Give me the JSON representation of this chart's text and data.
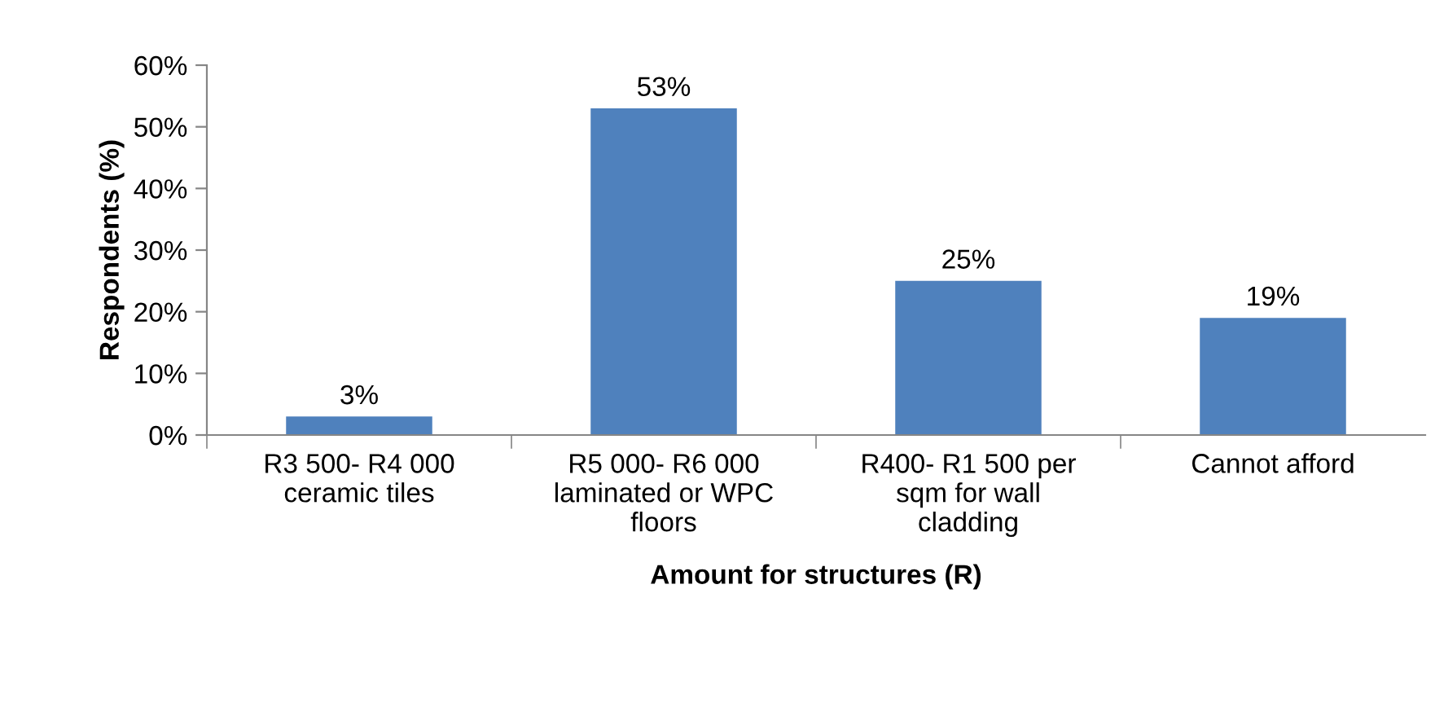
{
  "chart_data": {
    "type": "bar",
    "xlabel": "Amount for structures (R)",
    "ylabel": "Respondents (%)",
    "categories": [
      "R3 500- R4 000\nceramic tiles",
      "R5 000- R6 000\nlaminated or WPC\nfloors",
      "R400- R1 500 per\nsqm for wall\ncladding",
      "Cannot afford"
    ],
    "values": [
      3,
      53,
      25,
      19
    ],
    "color": "#4f81bd",
    "value_labels": [
      "3%",
      "53%",
      "25%",
      "19%"
    ],
    "ylim": [
      0,
      60
    ],
    "yticks": [
      {
        "value": 0,
        "label": "0%"
      },
      {
        "value": 10,
        "label": "10%"
      },
      {
        "value": 20,
        "label": "20%"
      },
      {
        "value": 30,
        "label": "30%"
      },
      {
        "value": 40,
        "label": "40%"
      },
      {
        "value": 50,
        "label": "50%"
      },
      {
        "value": 60,
        "label": "60%"
      }
    ],
    "grid": false,
    "legend": false
  }
}
